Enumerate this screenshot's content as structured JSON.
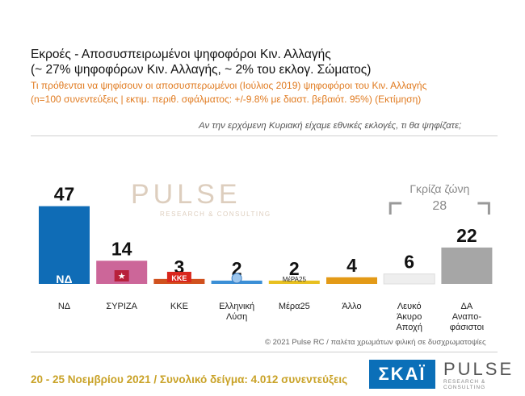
{
  "header": {
    "title": "Εκροές - Αποσυσπειρωμένοι ψηφοφόροι Κιν. Αλλαγής\n(~ 27% ψηφοφόρων Κιν. Αλλαγής, ~ 2% του εκλογ. Σώματος)",
    "subtitle": "Τι πρόθενται να ψηφίσουν οι αποσυσπερωμένοι (Ιούλιος 2019) ψηφοφόροι του Κιν. Αλλαγής\n(n=100 συνεντεύξεις | εκτιμ. περιθ. σφάλματος: +/-9.8% με διαστ. βεβαιότ. 95%)   (Εκτίμηση)",
    "question": "Αν την ερχόμενη Κυριακή είχαμε εθνικές εκλογές, τι θα ψηφίζατε;"
  },
  "watermark": {
    "name": "PULSE",
    "tagline": "RESEARCH & CONSULTING"
  },
  "grey_zone": {
    "label": "Γκρίζα ζώνη",
    "value": "28"
  },
  "chart_data": {
    "type": "bar",
    "categories": [
      "ΝΔ",
      "ΣΥΡΙΖΑ",
      "ΚΚΕ",
      "Ελληνική\nΛύση",
      "Μέρα25",
      "Άλλο",
      "Λευκό\nΆκυρο\nΑποχή",
      "ΔΑ\nΑναπο-\nφάσιστοι"
    ],
    "values": [
      47,
      14,
      3,
      2,
      2,
      4,
      6,
      22
    ],
    "colors": [
      "#0f6cb6",
      "#cc6699",
      "#d0511e",
      "#3b8fd6",
      "#e8c020",
      "#e39a17",
      "#eeeeee",
      "#a6a6a6"
    ],
    "logos": [
      {
        "type": "nd",
        "text": "ΝΔ"
      },
      {
        "type": "syriza",
        "text": "★"
      },
      {
        "type": "kke",
        "text": "ΚΚΕ"
      },
      {
        "type": "el",
        "text": "★"
      },
      {
        "type": "mera",
        "text": "ΜέΡΑ25"
      },
      null,
      null,
      null
    ],
    "ylim": [
      0,
      50
    ]
  },
  "footer": {
    "copyright": "© 2021 Pulse RC  /  παλέτα χρωμάτων φιλική σε δυσχρωματοψίες",
    "date_text": "20 - 25  Νοεμβρίου 2021  /  Συνολικό δείγμα:  4.012 συνεντεύξεις",
    "skai": "ΣΚΑΪ",
    "pulse": "PULSE",
    "pulse_tag": "RESEARCH & CONSULTING"
  }
}
